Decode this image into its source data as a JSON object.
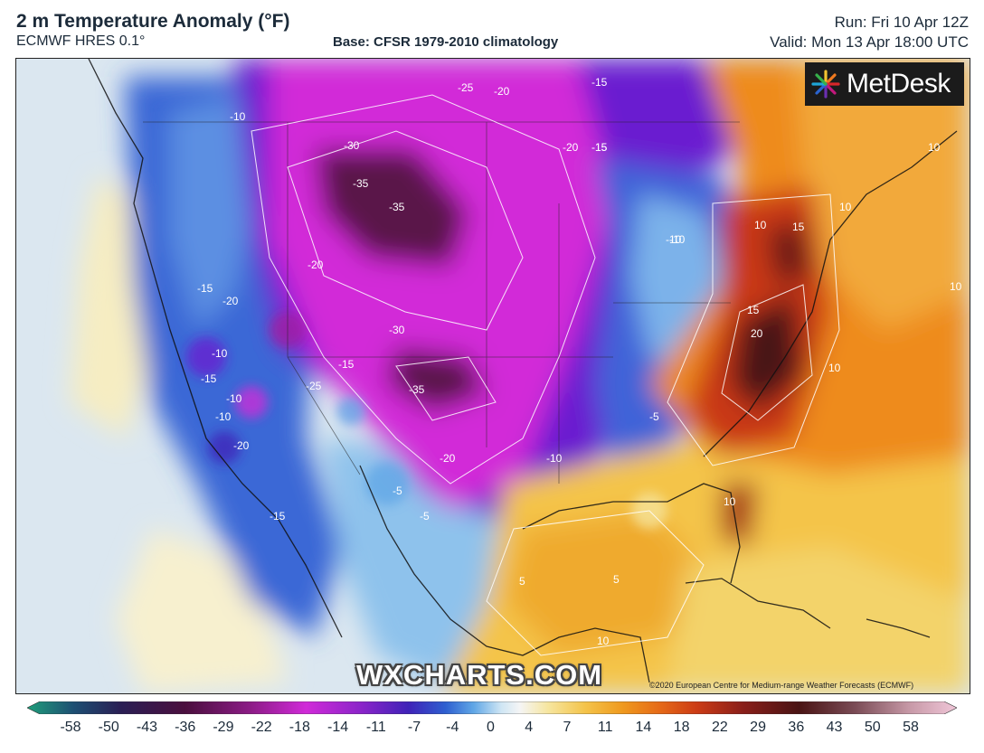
{
  "header": {
    "title": "2 m Temperature Anomaly (°F)",
    "model": "ECMWF HRES 0.1°",
    "base": "Base: CFSR 1979-2010 climatology",
    "run": "Run: Fri 10 Apr 12Z",
    "valid": "Valid: Mon 13 Apr 18:00 UTC"
  },
  "logo": {
    "text": "MetDesk",
    "icon": "metdesk-star-icon"
  },
  "watermark": "WXCHARTS.COM",
  "copyright": "©2020 European Centre for Medium-range Weather Forecasts (ECMWF)",
  "contour_labels": [
    "-25",
    "-20",
    "-15",
    "-10",
    "-30",
    "-35",
    "-35",
    "-20",
    "-15",
    "-15",
    "-20",
    "-10",
    "-30",
    "-35",
    "-25",
    "-20",
    "-15",
    "-10",
    "-20",
    "-15",
    "-10",
    "-20",
    "-15",
    "-10",
    "-10",
    "10",
    "15",
    "10",
    "15",
    "20",
    "10",
    "10",
    "10",
    "-10",
    "-15",
    "-5",
    "5",
    "10",
    "10",
    "5",
    "-5",
    "-5"
  ],
  "colorbar": {
    "ticks": [
      "-58",
      "-50",
      "-43",
      "-36",
      "-29",
      "-22",
      "-18",
      "-14",
      "-11",
      "-7",
      "-4",
      "0",
      "4",
      "7",
      "11",
      "14",
      "18",
      "22",
      "29",
      "36",
      "43",
      "50",
      "58"
    ],
    "colors": [
      "#1f9e7a",
      "#1d4f73",
      "#2a1f55",
      "#4b0f3e",
      "#6e1b6e",
      "#a21fa0",
      "#d02ad8",
      "#8a24c9",
      "#3f22b8",
      "#2e5fd0",
      "#5fa6e6",
      "#bfe0f3",
      "#f3f3f3",
      "#f6e6a0",
      "#f4c44a",
      "#ef9a1e",
      "#e66a17",
      "#cc3c16",
      "#8a1f1a",
      "#4a1414",
      "#7a4b55",
      "#c89aa8",
      "#f0c6d8"
    ]
  },
  "legend": {
    "units": "°F"
  }
}
